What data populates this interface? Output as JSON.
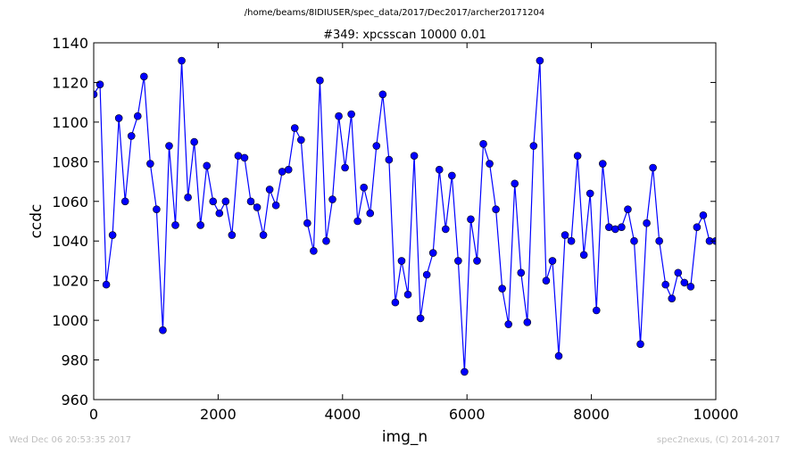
{
  "figure": {
    "suptitle": "/home/beams/8IDIUSER/spec_data/2017/Dec2017/archer20171204",
    "footer_left": "Wed Dec 06 20:53:35 2017",
    "footer_right": "spec2nexus, (C) 2014-2017"
  },
  "chart_data": {
    "type": "line",
    "title": "#349: xpcsscan 10000 0.01",
    "xlabel": "img_n",
    "ylabel": "ccdc",
    "xlim": [
      0,
      10000
    ],
    "ylim": [
      960,
      1140
    ],
    "xticks": [
      0,
      2000,
      4000,
      6000,
      8000,
      10000
    ],
    "yticks": [
      960,
      980,
      1000,
      1020,
      1040,
      1060,
      1080,
      1100,
      1120,
      1140
    ],
    "grid": false,
    "legend": "none",
    "series": [
      {
        "color": "#0000ff",
        "marker": "circle",
        "x": [
          0,
          101,
          202,
          303,
          404,
          505,
          606,
          707,
          808,
          909,
          1010,
          1111,
          1212,
          1313,
          1414,
          1515,
          1616,
          1717,
          1818,
          1919,
          2020,
          2121,
          2222,
          2323,
          2424,
          2525,
          2626,
          2727,
          2828,
          2929,
          3030,
          3131,
          3232,
          3333,
          3434,
          3535,
          3636,
          3737,
          3838,
          3939,
          4040,
          4141,
          4242,
          4343,
          4444,
          4545,
          4646,
          4747,
          4848,
          4949,
          5051,
          5152,
          5253,
          5354,
          5455,
          5556,
          5657,
          5758,
          5859,
          5960,
          6061,
          6162,
          6263,
          6364,
          6465,
          6566,
          6667,
          6768,
          6869,
          6970,
          7071,
          7172,
          7273,
          7374,
          7475,
          7576,
          7677,
          7778,
          7879,
          7980,
          8081,
          8182,
          8283,
          8384,
          8485,
          8586,
          8687,
          8788,
          8889,
          8990,
          9091,
          9192,
          9293,
          9394,
          9495,
          9596,
          9697,
          9798,
          9899,
          10000
        ],
        "y": [
          1114,
          1119,
          1018,
          1043,
          1102,
          1060,
          1093,
          1103,
          1123,
          1079,
          1056,
          995,
          1088,
          1048,
          1131,
          1062,
          1090,
          1048,
          1078,
          1060,
          1054,
          1060,
          1043,
          1083,
          1082,
          1060,
          1057,
          1043,
          1066,
          1058,
          1075,
          1076,
          1097,
          1091,
          1049,
          1035,
          1121,
          1040,
          1061,
          1103,
          1077,
          1104,
          1050,
          1067,
          1054,
          1088,
          1114,
          1081,
          1009,
          1030,
          1013,
          1083,
          1001,
          1023,
          1034,
          1076,
          1046,
          1073,
          1030,
          974,
          1051,
          1030,
          1089,
          1079,
          1056,
          1016,
          998,
          1069,
          1024,
          999,
          1088,
          1131,
          1020,
          1030,
          982,
          1043,
          1040,
          1083,
          1033,
          1064,
          1005,
          1079,
          1047,
          1046,
          1047,
          1056,
          1040,
          988,
          1049,
          1077,
          1040,
          1018,
          1011,
          1024,
          1019,
          1017,
          1047,
          1053,
          1040,
          1040
        ]
      }
    ]
  }
}
